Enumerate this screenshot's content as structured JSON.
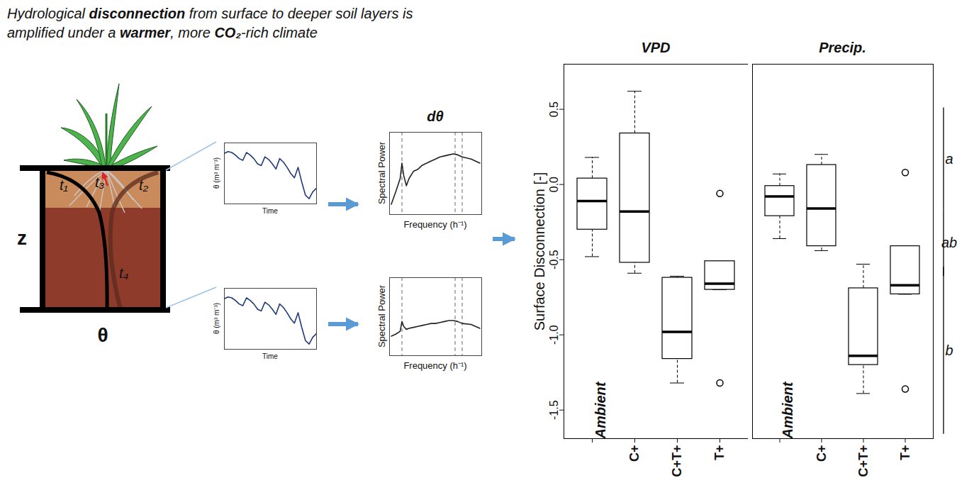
{
  "title_lines": [
    [
      {
        "text": "Hydrological "
      },
      {
        "text": "disconnection",
        "bold": true
      },
      {
        "text": " from surface to deeper soil layers is"
      }
    ],
    [
      {
        "text": "amplified under a "
      },
      {
        "text": "warmer",
        "bold": true
      },
      {
        "text": ", more "
      },
      {
        "text": "CO₂",
        "bold": true
      },
      {
        "text": "-rich climate"
      }
    ]
  ],
  "diagram": {
    "depth_label": "z",
    "moisture_label": "θ",
    "time_labels": [
      "t₁",
      "t₂",
      "t₃",
      "t₄"
    ]
  },
  "chart_data": [
    {
      "type": "line",
      "xlabel": "Time",
      "ylabel": "θ (m³ m⁻³)",
      "tick_labels": false,
      "color": "#1f3b7a",
      "x": [
        0,
        1,
        2,
        3,
        4,
        5,
        6,
        7,
        8,
        9,
        10,
        11,
        12,
        13,
        14,
        15,
        16,
        17,
        18,
        19,
        20,
        21,
        22,
        23,
        24,
        25
      ],
      "values": [
        0.78,
        0.8,
        0.79,
        0.76,
        0.72,
        0.7,
        0.79,
        0.76,
        0.72,
        0.66,
        0.64,
        0.74,
        0.71,
        0.66,
        0.6,
        0.72,
        0.68,
        0.62,
        0.55,
        0.5,
        0.62,
        0.45,
        0.3,
        0.26,
        0.34,
        0.38
      ],
      "xlim": [
        0,
        25
      ],
      "ylim": [
        0.2,
        0.9
      ]
    },
    {
      "type": "line",
      "xlabel": "Time",
      "ylabel": "θ (m³ m⁻³)",
      "tick_labels": false,
      "color": "#1f3b7a",
      "x": [
        0,
        1,
        2,
        3,
        4,
        5,
        6,
        7,
        8,
        9,
        10,
        11,
        12,
        13,
        14,
        15,
        16,
        17,
        18,
        19,
        20,
        21,
        22,
        23,
        24,
        25
      ],
      "values": [
        0.78,
        0.8,
        0.79,
        0.76,
        0.72,
        0.7,
        0.79,
        0.76,
        0.72,
        0.66,
        0.64,
        0.74,
        0.71,
        0.66,
        0.6,
        0.72,
        0.68,
        0.62,
        0.55,
        0.5,
        0.62,
        0.45,
        0.3,
        0.26,
        0.34,
        0.38
      ],
      "xlim": [
        0,
        25
      ],
      "ylim": [
        0.2,
        0.9
      ]
    },
    {
      "type": "line",
      "title": "dθ",
      "xlabel": "Frequency (h⁻¹)",
      "ylabel": "Spectral Power",
      "tick_labels": false,
      "color": "#222222",
      "x": [
        0,
        0.05,
        0.1,
        0.12,
        0.14,
        0.17,
        0.2,
        0.25,
        0.3,
        0.35,
        0.4,
        0.45,
        0.5,
        0.55,
        0.6,
        0.65,
        0.7,
        0.75,
        0.8,
        0.9,
        1.0
      ],
      "values": [
        0.3,
        0.42,
        0.55,
        0.7,
        0.58,
        0.48,
        0.55,
        0.62,
        0.64,
        0.68,
        0.7,
        0.72,
        0.74,
        0.76,
        0.77,
        0.78,
        0.79,
        0.78,
        0.76,
        0.74,
        0.7
      ],
      "vlines": [
        0.12,
        0.72,
        0.8
      ],
      "xlim": [
        -0.02,
        1.02
      ],
      "ylim": [
        0.2,
        1.0
      ]
    },
    {
      "type": "line",
      "xlabel": "Frequency (h⁻¹)",
      "ylabel": "Spectral Power",
      "tick_labels": false,
      "color": "#222222",
      "x": [
        0,
        0.05,
        0.1,
        0.12,
        0.14,
        0.17,
        0.2,
        0.25,
        0.3,
        0.35,
        0.4,
        0.45,
        0.5,
        0.55,
        0.6,
        0.65,
        0.7,
        0.75,
        0.8,
        0.9,
        1.0
      ],
      "values": [
        0.4,
        0.42,
        0.45,
        0.55,
        0.5,
        0.47,
        0.48,
        0.49,
        0.5,
        0.51,
        0.52,
        0.53,
        0.53,
        0.54,
        0.55,
        0.56,
        0.56,
        0.55,
        0.53,
        0.52,
        0.48
      ],
      "vlines": [
        0.12,
        0.72,
        0.8
      ],
      "xlim": [
        -0.02,
        1.02
      ],
      "ylim": [
        0.2,
        1.0
      ]
    },
    {
      "type": "box",
      "title": "VPD",
      "ylabel": "Surface Disconnection [-]",
      "categories": [
        null,
        "C+",
        "C+T+",
        "T+"
      ],
      "annotations": [
        {
          "text": "Ambient",
          "category": 0
        }
      ],
      "boxes": [
        {
          "low": -0.48,
          "q1": -0.3,
          "median": -0.11,
          "q3": 0.04,
          "high": 0.18,
          "outliers": []
        },
        {
          "low": -0.59,
          "q1": -0.52,
          "median": -0.18,
          "q3": 0.34,
          "high": 0.62,
          "outliers": []
        },
        {
          "low": -1.32,
          "q1": -1.16,
          "median": -0.98,
          "q3": -0.62,
          "high": -0.61,
          "outliers": []
        },
        {
          "low": -0.7,
          "q1": -0.7,
          "median": -0.66,
          "q3": -0.51,
          "high": -0.51,
          "outliers": [
            -0.06,
            -1.32
          ]
        }
      ],
      "ylim": [
        -1.69,
        0.8
      ],
      "yticks": [
        -1.5,
        {
          "value": -1,
          "label": "-1.0"
        },
        -0.5,
        {
          "value": 0,
          "label": "0.0"
        },
        0.5
      ]
    },
    {
      "type": "box",
      "title": "Precip.",
      "tick_labels": "x",
      "categories": [
        null,
        "C+",
        "C+T+",
        "T+"
      ],
      "annotations": [
        {
          "text": "Ambient",
          "category": 0
        }
      ],
      "boxes": [
        {
          "low": -0.36,
          "q1": -0.21,
          "median": -0.08,
          "q3": -0.01,
          "high": 0.07,
          "outliers": []
        },
        {
          "low": -0.44,
          "q1": -0.41,
          "median": -0.16,
          "q3": 0.13,
          "high": 0.2,
          "outliers": []
        },
        {
          "low": -1.39,
          "q1": -1.2,
          "median": -1.14,
          "q3": -0.69,
          "high": -0.53,
          "outliers": []
        },
        {
          "low": -0.73,
          "q1": -0.73,
          "median": -0.67,
          "q3": -0.41,
          "high": -0.41,
          "outliers": [
            0.08,
            -1.36
          ]
        }
      ],
      "groups": [
        {
          "label": "a",
          "from": 0.51,
          "to": -0.17
        },
        {
          "label": "ab",
          "from": -0.17,
          "to": -0.61
        },
        {
          "label": "b",
          "from": -0.55,
          "to": -1.66
        }
      ],
      "ylim": [
        -1.69,
        0.8
      ]
    }
  ]
}
